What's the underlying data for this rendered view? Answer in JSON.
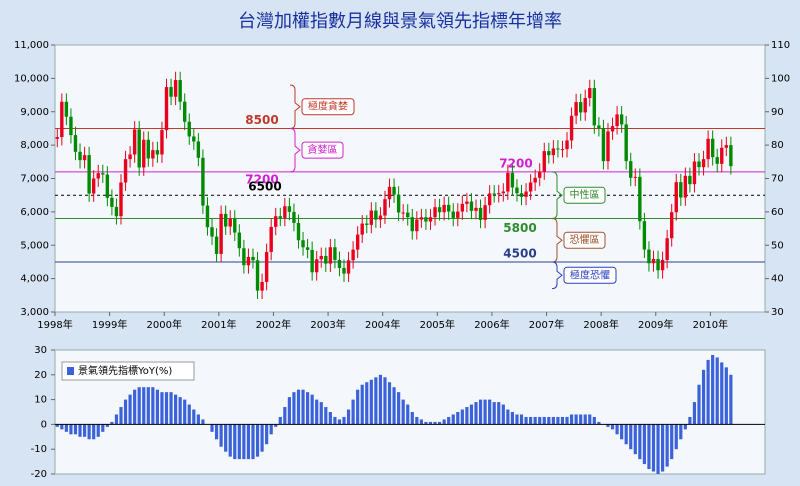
{
  "chart_data": [
    {
      "type": "candlestick",
      "title": "台灣加權指數月線與景氣領先指標年增率",
      "categories": [
        "1998年",
        null,
        null,
        null,
        null,
        null,
        null,
        null,
        null,
        null,
        null,
        null,
        "1999年",
        null,
        null,
        null,
        null,
        null,
        null,
        null,
        null,
        null,
        null,
        null,
        "2000年",
        null,
        null,
        null,
        null,
        null,
        null,
        null,
        null,
        null,
        null,
        null,
        "2001年",
        null,
        null,
        null,
        null,
        null,
        null,
        null,
        null,
        null,
        null,
        null,
        "2002年",
        null,
        null,
        null,
        null,
        null,
        null,
        null,
        null,
        null,
        null,
        null,
        "2003年",
        null,
        null,
        null,
        null,
        null,
        null,
        null,
        null,
        null,
        null,
        null,
        "2004年",
        null,
        null,
        null,
        null,
        null,
        null,
        null,
        null,
        null,
        null,
        null,
        "2005年",
        null,
        null,
        null,
        null,
        null,
        null,
        null,
        null,
        null,
        null,
        null,
        "2006年",
        null,
        null,
        null,
        null,
        null,
        null,
        null,
        null,
        null,
        null,
        null,
        "2007年",
        null,
        null,
        null,
        null,
        null,
        null,
        null,
        null,
        null,
        null,
        null,
        "2008年",
        null,
        null,
        null,
        null,
        null,
        null,
        null,
        null,
        null,
        null,
        null,
        "2009年",
        null,
        null,
        null,
        null,
        null,
        null,
        null,
        null,
        null,
        null,
        null,
        "2010年",
        null,
        null,
        null,
        null
      ],
      "open": [
        8190,
        8240,
        9300,
        8850,
        8300,
        7800,
        7550,
        7700,
        6550,
        7000,
        7160,
        7120,
        6420,
        6150,
        5870,
        6880,
        7580,
        7720,
        8470,
        7330,
        8160,
        7600,
        7850,
        7720,
        8450,
        9740,
        9450,
        9950,
        9300,
        8700,
        8260,
        8110,
        7620,
        6190,
        5540,
        5260,
        4740,
        5940,
        5560,
        5800,
        5380,
        4910,
        4400,
        4650,
        4550,
        3640,
        3900,
        4800,
        5550,
        5870,
        5820,
        6170,
        6000,
        5670,
        5150,
        4940,
        4860,
        4190,
        4580,
        4680,
        4450,
        4940,
        4560,
        4320,
        4150,
        4550,
        4870,
        5320,
        5650,
        5610,
        6040,
        5770,
        5890,
        6380,
        6750,
        6520,
        5980,
        5980,
        5840,
        5420,
        5770,
        5840,
        5710,
        5840,
        6140,
        5990,
        6210,
        6010,
        5820,
        6010,
        6240,
        6310,
        6030,
        6120,
        5760,
        6200,
        6550,
        6530,
        6560,
        6610,
        7170,
        6730,
        6560,
        6450,
        6610,
        6880,
        7020,
        7210,
        7820,
        7700,
        7900,
        7880,
        7880,
        8140,
        8880,
        9290,
        8980,
        9410,
        9710,
        8590,
        8510,
        7520,
        8410,
        8570,
        8920,
        8620,
        7520,
        7020,
        7050,
        5720,
        4870,
        4460,
        4590,
        4250,
        4560,
        5210,
        5990,
        6890,
        6430,
        7080,
        6830,
        7510,
        7340,
        7580,
        8190,
        7640,
        7440,
        7920,
        8000
      ],
      "high": [
        8490,
        9550,
        9550,
        9100,
        8550,
        8050,
        7950,
        7950,
        7250,
        7410,
        7410,
        7370,
        6670,
        6400,
        7130,
        7830,
        7970,
        8720,
        8720,
        8410,
        8410,
        8100,
        8100,
        8700,
        9990,
        9990,
        10200,
        10200,
        9550,
        8950,
        8510,
        8360,
        7870,
        6440,
        5790,
        5510,
        6190,
        6190,
        6050,
        6050,
        5630,
        5160,
        4900,
        4900,
        4800,
        4150,
        5050,
        5800,
        6120,
        6120,
        6420,
        6420,
        6250,
        5920,
        5400,
        5190,
        5110,
        4830,
        4930,
        4930,
        5190,
        5190,
        4810,
        4570,
        4800,
        5120,
        5570,
        5900,
        5900,
        6290,
        6290,
        6140,
        6630,
        7000,
        7000,
        6770,
        6230,
        6230,
        6090,
        6020,
        6090,
        6090,
        6090,
        6390,
        6390,
        6460,
        6460,
        6260,
        6260,
        6490,
        6560,
        6560,
        6370,
        6370,
        6450,
        6800,
        6800,
        6810,
        6860,
        7420,
        7420,
        6980,
        6810,
        6860,
        7130,
        7270,
        7460,
        8070,
        8070,
        8150,
        8150,
        8130,
        8390,
        9130,
        9540,
        9540,
        9660,
        9960,
        9960,
        8840,
        8760,
        8660,
        8820,
        9170,
        9170,
        8870,
        7770,
        7300,
        7300,
        5970,
        5120,
        4840,
        4840,
        4810,
        5460,
        6240,
        7140,
        7140,
        7330,
        7330,
        7760,
        7760,
        7830,
        8440,
        8440,
        7890,
        8170,
        8250,
        8250
      ],
      "low": [
        7940,
        7990,
        8600,
        8050,
        7550,
        7300,
        7300,
        6300,
        6300,
        6750,
        6870,
        6170,
        5900,
        5620,
        5620,
        6630,
        7330,
        7470,
        7080,
        7080,
        7350,
        7350,
        7470,
        7470,
        8200,
        9200,
        9200,
        9050,
        8450,
        8010,
        7860,
        7370,
        5940,
        5290,
        5010,
        4490,
        4490,
        5310,
        5310,
        5130,
        4660,
        4150,
        4150,
        4300,
        3390,
        3390,
        3650,
        4550,
        5300,
        5570,
        5570,
        5750,
        5420,
        4900,
        4690,
        4610,
        3940,
        3940,
        4330,
        4200,
        4200,
        4310,
        4070,
        3900,
        3900,
        4300,
        4620,
        5070,
        5360,
        5360,
        5520,
        5520,
        5640,
        6130,
        6270,
        5730,
        5730,
        5590,
        5170,
        5170,
        5520,
        5460,
        5460,
        5590,
        5740,
        5740,
        5760,
        5570,
        5570,
        5760,
        5990,
        5780,
        5780,
        5510,
        5510,
        5950,
        6280,
        6280,
        6310,
        6360,
        6480,
        6310,
        6200,
        6200,
        6360,
        6630,
        6770,
        6960,
        7450,
        7450,
        7630,
        7630,
        7630,
        7890,
        8630,
        8730,
        8730,
        9160,
        8340,
        8260,
        7270,
        7270,
        8160,
        8320,
        8370,
        7270,
        6770,
        6770,
        5470,
        4620,
        4210,
        4210,
        4000,
        4000,
        4310,
        4960,
        5740,
        6180,
        6180,
        6580,
        6580,
        7090,
        7090,
        7330,
        7390,
        7190,
        7190,
        7670,
        7120
      ],
      "close": [
        8240,
        9300,
        8850,
        8300,
        7800,
        7550,
        7700,
        6550,
        7000,
        7160,
        7120,
        6420,
        6150,
        5870,
        6880,
        7580,
        7720,
        8470,
        7330,
        8160,
        7600,
        7850,
        7720,
        8450,
        9740,
        9450,
        9950,
        9300,
        8700,
        8260,
        8110,
        7620,
        6190,
        5540,
        5260,
        4740,
        5940,
        5560,
        5800,
        5380,
        4910,
        4400,
        4650,
        4550,
        3640,
        3900,
        4800,
        5550,
        5870,
        5820,
        6170,
        6000,
        5670,
        5150,
        4940,
        4860,
        4190,
        4580,
        4680,
        4450,
        4940,
        4560,
        4320,
        4150,
        4550,
        4870,
        5320,
        5650,
        5610,
        6040,
        5770,
        5890,
        6380,
        6750,
        6520,
        5980,
        5980,
        5840,
        5420,
        5770,
        5840,
        5710,
        5840,
        6140,
        5990,
        6210,
        6010,
        5820,
        6010,
        6240,
        6310,
        6030,
        6120,
        5760,
        6200,
        6550,
        6530,
        6560,
        6610,
        7170,
        6730,
        6560,
        6450,
        6610,
        6880,
        7020,
        7210,
        7820,
        7700,
        7900,
        7880,
        7880,
        8140,
        8880,
        9290,
        8980,
        9410,
        9710,
        8590,
        8510,
        7520,
        8410,
        8570,
        8920,
        8620,
        7520,
        7020,
        7050,
        5720,
        4870,
        4460,
        4590,
        4250,
        4560,
        5210,
        5990,
        6890,
        6430,
        7080,
        6830,
        7510,
        7340,
        7580,
        8190,
        7640,
        7440,
        7920,
        8000,
        7370
      ],
      "up_color": "#e8001c",
      "down_color": "#008a00",
      "ylim": [
        3000,
        11000
      ],
      "yticks": [
        {
          "value": 3000,
          "label": "3,000"
        },
        {
          "value": 4000,
          "label": "4,000"
        },
        {
          "value": 5000,
          "label": "5,000"
        },
        {
          "value": 6000,
          "label": "6,000"
        },
        {
          "value": 7000,
          "label": "7,000"
        },
        {
          "value": 8000,
          "label": "8,000"
        },
        {
          "value": 9000,
          "label": "9,000"
        },
        {
          "value": 10000,
          "label": "10,000"
        },
        {
          "value": 11000,
          "label": "11,000"
        }
      ],
      "y2lim": [
        30,
        110
      ],
      "y2ticks": [
        30,
        40,
        50,
        60,
        70,
        80,
        90,
        100,
        110
      ],
      "reference_lines": [
        {
          "value": 8500,
          "color": "#c0392b"
        },
        {
          "value": 7200,
          "color": "#d020d0"
        },
        {
          "value": 6500,
          "color": "#000000",
          "dashed": true
        },
        {
          "value": 5800,
          "color": "#2e8b2e"
        },
        {
          "value": 4500,
          "color": "#2a3f8a"
        }
      ],
      "annotations": [
        {
          "text": "極度貪婪",
          "from": 8500,
          "to": 9800,
          "color": "#c0392b"
        },
        {
          "text": "貪婪區",
          "from": 7200,
          "to": 8500,
          "color": "#d020d0"
        },
        {
          "text": "中性區",
          "from": 5800,
          "to": 7200,
          "color": "#2e8b2e"
        },
        {
          "text": "恐懼區",
          "from": 4500,
          "to": 5800,
          "color": "#a0522d"
        },
        {
          "text": "極度恐懼",
          "from": 3700,
          "to": 4500,
          "color": "#2a3fc0"
        }
      ]
    },
    {
      "type": "bar",
      "series": [
        {
          "name": "景氣領先指標YoY(%)",
          "color": "#3b62d8",
          "values": [
            -1,
            -2,
            -3,
            -4,
            -4,
            -5,
            -5,
            -6,
            -6,
            -5,
            -3,
            -1,
            1,
            4,
            7,
            10,
            12,
            14,
            15,
            15,
            15,
            15,
            14,
            13,
            13,
            13,
            12,
            11,
            10,
            8,
            6,
            4,
            2,
            0,
            -3,
            -6,
            -9,
            -11,
            -13,
            -14,
            -14,
            -14,
            -14,
            -14,
            -13,
            -11,
            -8,
            -4,
            -1,
            3,
            7,
            11,
            13,
            14,
            14,
            13,
            12,
            10,
            9,
            7,
            5,
            3,
            2,
            3,
            6,
            10,
            14,
            16,
            17,
            18,
            19,
            20,
            19,
            17,
            15,
            13,
            10,
            8,
            5,
            3,
            2,
            1,
            1,
            1,
            1,
            2,
            3,
            4,
            5,
            6,
            7,
            8,
            9,
            10,
            10,
            10,
            9,
            9,
            8,
            6,
            5,
            4,
            4,
            3,
            3,
            3,
            3,
            3,
            3,
            3,
            3,
            3,
            3,
            4,
            4,
            4,
            4,
            4,
            3,
            1,
            0,
            -1,
            -2,
            -4,
            -6,
            -8,
            -10,
            -12,
            -14,
            -16,
            -18,
            -19,
            -20,
            -19,
            -17,
            -14,
            -10,
            -6,
            -2,
            3,
            9,
            16,
            22,
            26,
            28,
            27,
            25,
            23,
            20
          ]
        }
      ],
      "ylim": [
        -20,
        30
      ],
      "yticks": [
        -20,
        -10,
        0,
        10,
        20,
        30
      ]
    }
  ]
}
